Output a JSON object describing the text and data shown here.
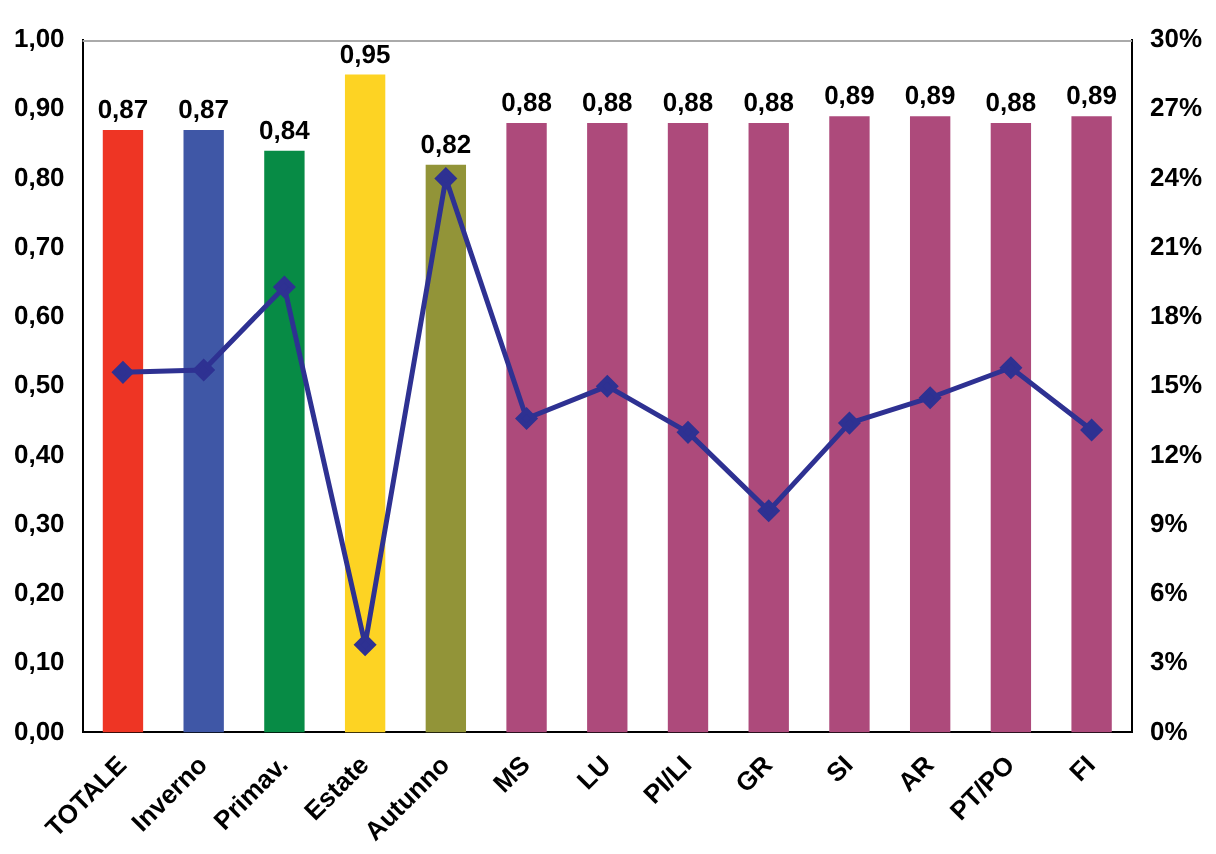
{
  "chart_data": {
    "type": "bar",
    "categories": [
      "TOTALE",
      "Inverno",
      "Primav.",
      "Estate",
      "Autunno",
      "MS",
      "LU",
      "PI/LI",
      "GR",
      "SI",
      "AR",
      "PT/PO",
      "FI"
    ],
    "series": [
      {
        "colors": [
          "#ee3524",
          "#3f57a6",
          "#078b45",
          "#fdd323",
          "#929438",
          "#ad4a7b",
          "#ad4a7b",
          "#ad4a7b",
          "#ad4a7b",
          "#ad4a7b",
          "#ad4a7b",
          "#ad4a7b",
          "#ad4a7b"
        ],
        "values": [
          0.87,
          0.87,
          0.84,
          0.95,
          0.82,
          0.88,
          0.88,
          0.88,
          0.88,
          0.89,
          0.89,
          0.88,
          0.89
        ],
        "value_labels": [
          "0,87",
          "0,87",
          "0,84",
          "0,95",
          "0,82",
          "0,88",
          "0,88",
          "0,88",
          "0,88",
          "0,89",
          "0,89",
          "0,88",
          "0,89"
        ]
      },
      {
        "type": "line",
        "axis": "y2",
        "color": "#2e3192",
        "marker": "diamond",
        "values": [
          15.6,
          15.7,
          19.3,
          3.8,
          24.0,
          13.6,
          15.0,
          13.0,
          9.6,
          13.4,
          14.5,
          15.8,
          13.1
        ]
      }
    ],
    "ylim": [
      0,
      1
    ],
    "yticks": [
      {
        "value": 0,
        "label": "0,00"
      },
      {
        "value": 0.1,
        "label": "0,10"
      },
      {
        "value": 0.2,
        "label": "0,20"
      },
      {
        "value": 0.3,
        "label": "0,30"
      },
      {
        "value": 0.4,
        "label": "0,40"
      },
      {
        "value": 0.5,
        "label": "0,50"
      },
      {
        "value": 0.6,
        "label": "0,60"
      },
      {
        "value": 0.7,
        "label": "0,70"
      },
      {
        "value": 0.8,
        "label": "0,80"
      },
      {
        "value": 0.9,
        "label": "0,90"
      },
      {
        "value": 1,
        "label": "1,00"
      }
    ],
    "y2lim": [
      0,
      30
    ],
    "y2ticks": [
      {
        "value": 0,
        "label": "0%"
      },
      {
        "value": 3,
        "label": "3%"
      },
      {
        "value": 6,
        "label": "6%"
      },
      {
        "value": 9,
        "label": "9%"
      },
      {
        "value": 12,
        "label": "12%"
      },
      {
        "value": 15,
        "label": "15%"
      },
      {
        "value": 18,
        "label": "18%"
      },
      {
        "value": 21,
        "label": "21%"
      },
      {
        "value": 24,
        "label": "24%"
      },
      {
        "value": 27,
        "label": "27%"
      },
      {
        "value": 30,
        "label": "30%"
      }
    ],
    "grid": false,
    "legend": false
  }
}
